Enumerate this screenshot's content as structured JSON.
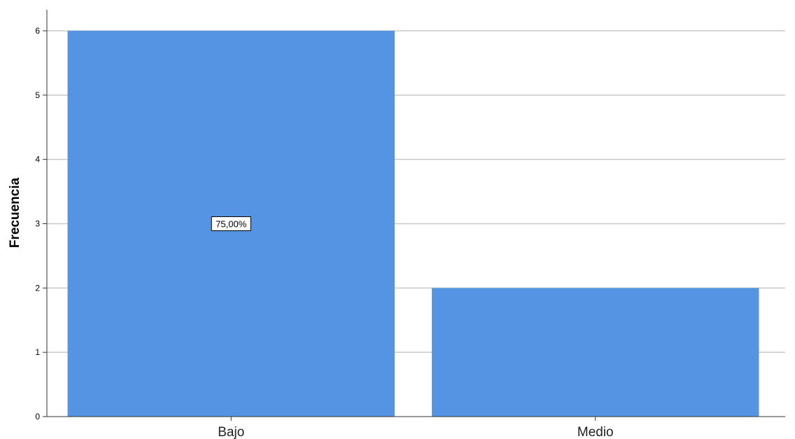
{
  "chart_data": {
    "type": "bar",
    "title": "",
    "xlabel": "",
    "ylabel": "Frecuencia",
    "categories": [
      "Bajo",
      "Medio"
    ],
    "values": [
      6,
      2
    ],
    "ylim": [
      0,
      6
    ],
    "yticks": [
      "0",
      "1",
      "2",
      "3",
      "4",
      "5",
      "6"
    ],
    "grid": true,
    "bar_color": "#5594e2",
    "data_labels": [
      {
        "category": "Bajo",
        "text": "75,00%"
      }
    ]
  }
}
